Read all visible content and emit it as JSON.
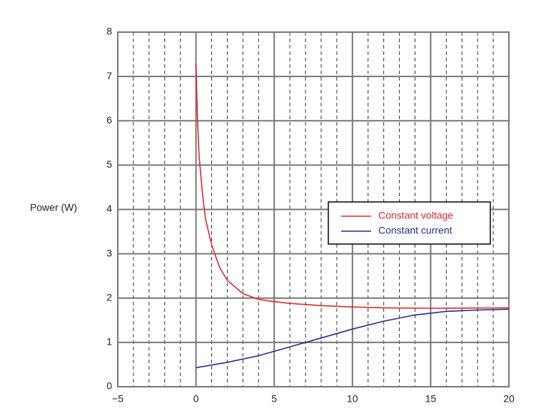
{
  "chart_data": {
    "type": "line",
    "y_label": "Power (W)",
    "xlim": [
      -5,
      20
    ],
    "xticks": [
      {
        "value": -5,
        "label": "−5"
      },
      0,
      5,
      10,
      15,
      20
    ],
    "x_minor_grid": [
      -4,
      -3,
      -2,
      -1,
      1,
      2,
      3,
      4,
      6,
      7,
      8,
      9,
      11,
      12,
      13,
      14,
      16,
      17,
      18,
      19
    ],
    "ylim": [
      0,
      8
    ],
    "yticks": [
      0,
      1,
      2,
      3,
      4,
      5,
      6,
      7,
      8
    ],
    "grid": true,
    "legend": "right",
    "series": [
      {
        "name": "Constant voltage",
        "color": "#e3262b",
        "x": [
          0,
          0.1,
          0.2,
          0.4,
          0.6,
          1,
          1.5,
          2,
          3,
          4,
          5,
          6,
          8,
          10,
          12,
          15,
          20
        ],
        "values": [
          7.3,
          6.0,
          5.2,
          4.4,
          3.8,
          3.2,
          2.7,
          2.4,
          2.1,
          1.97,
          1.92,
          1.88,
          1.83,
          1.8,
          1.78,
          1.77,
          1.78
        ]
      },
      {
        "name": "Constant current",
        "color": "#1f2f8f",
        "x": [
          0,
          2,
          4,
          6,
          8,
          10,
          12,
          14,
          16,
          18,
          20
        ],
        "values": [
          0.43,
          0.55,
          0.7,
          0.9,
          1.1,
          1.3,
          1.48,
          1.62,
          1.7,
          1.73,
          1.75
        ]
      }
    ]
  }
}
